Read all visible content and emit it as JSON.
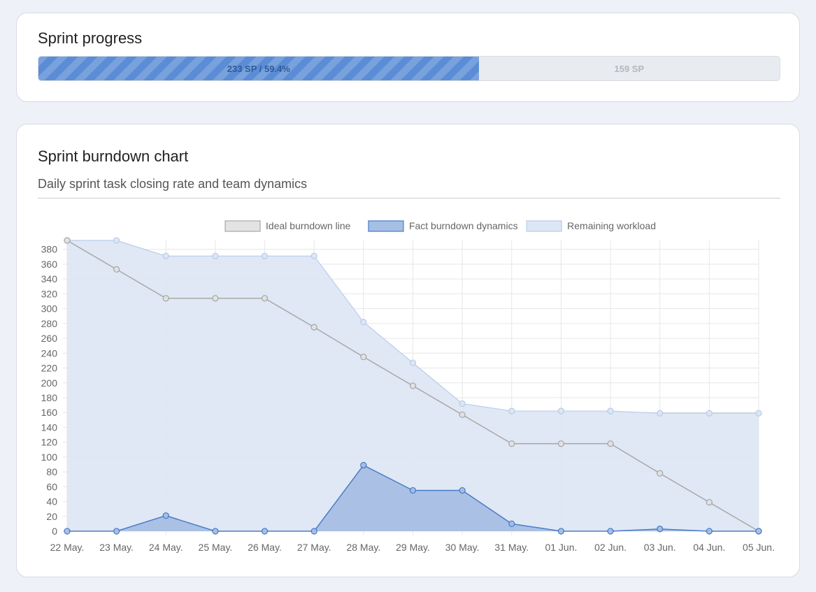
{
  "progress": {
    "title": "Sprint progress",
    "done_label": "233 SP / 59.4%",
    "remaining_label": "159 SP",
    "done_fraction": 0.594
  },
  "burndown": {
    "title": "Sprint burndown chart",
    "subtitle": "Daily sprint task closing rate and team dynamics"
  },
  "chart_data": {
    "type": "line",
    "categories": [
      "22 May.",
      "23 May.",
      "24 May.",
      "25 May.",
      "26 May.",
      "27 May.",
      "28 May.",
      "29 May.",
      "30 May.",
      "31 May.",
      "01 Jun.",
      "02 Jun.",
      "03 Jun.",
      "04 Jun.",
      "05 Jun."
    ],
    "ylim": [
      0,
      392
    ],
    "yticks": [
      0,
      20,
      40,
      60,
      80,
      100,
      120,
      140,
      160,
      180,
      200,
      220,
      240,
      260,
      280,
      300,
      320,
      340,
      360,
      380
    ],
    "legend_position": "top",
    "grid": true,
    "series": [
      {
        "name": "Ideal burndown line",
        "color": "#a8a8a8",
        "fill": "#e3e3e3",
        "filled": false,
        "values": [
          392,
          353,
          314,
          314,
          314,
          275,
          235,
          196,
          157,
          118,
          118,
          118,
          78,
          39,
          0
        ]
      },
      {
        "name": "Fact burndown dynamics",
        "color": "#4a7cc8",
        "fill": "#a6bfe4",
        "filled": true,
        "values": [
          0,
          0,
          21,
          0,
          0,
          0,
          89,
          55,
          55,
          10,
          0,
          0,
          3,
          0,
          0
        ]
      },
      {
        "name": "Remaining workload",
        "color": "#b8cde9",
        "fill": "#dde6f4",
        "filled": true,
        "values": [
          392,
          392,
          371,
          371,
          371,
          371,
          282,
          227,
          172,
          162,
          162,
          162,
          159,
          159,
          159
        ]
      }
    ]
  }
}
